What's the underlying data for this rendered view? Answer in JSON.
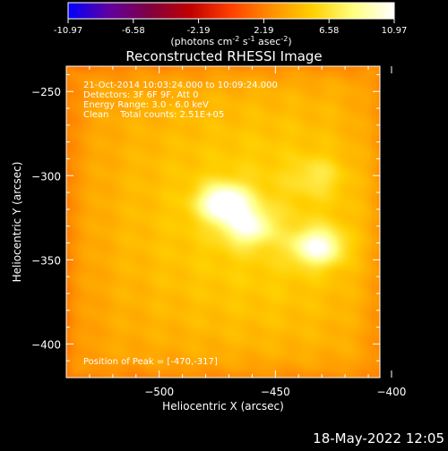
{
  "chart_data": {
    "type": "heatmap",
    "title": "Reconstructed RHESSI Image",
    "xlabel": "Heliocentric X (arcsec)",
    "ylabel": "Heliocentric Y (arcsec)",
    "xlim": [
      -540,
      -405
    ],
    "ylim": [
      -420,
      -235
    ],
    "xticks": [
      -500,
      -450,
      -400
    ],
    "yticks": [
      -250,
      -300,
      -350,
      -400
    ],
    "colorbar": {
      "min": -10.97,
      "max": 10.97,
      "ticks": [
        "-10.97",
        "-6.58",
        "-2.19",
        "2.19",
        "6.58",
        "10.97"
      ],
      "unit_label": "(photons cm",
      "unit_sup1": "-2",
      "unit_mid1": " s",
      "unit_sup2": "-1",
      "unit_mid2": " asec",
      "unit_sup3": "-2",
      "unit_end": ")"
    },
    "annotations": [
      "21-Oct-2014 10:03:24.000 to 10:09:24.000",
      "Detectors: 3F 6F 9F, Att 0",
      "Energy Range: 3.0 - 6.0 keV",
      "Clean    Total counts: 2.51E+05"
    ],
    "peak_label": "Position of Peak = [-470,-317]",
    "peak": [
      -470,
      -317
    ],
    "sources": [
      {
        "x": -472,
        "y": -316,
        "value": 10.9
      },
      {
        "x": -462,
        "y": -330,
        "value": 8.6
      },
      {
        "x": -432,
        "y": -342,
        "value": 9.4
      },
      {
        "x": -432,
        "y": -300,
        "value": 5.4
      }
    ],
    "background_level": 3.6,
    "colormap": [
      "#0000ff",
      "#6000a0",
      "#800040",
      "#c00000",
      "#ff4000",
      "#ff9000",
      "#ffd000",
      "#ffff80",
      "#ffffff"
    ]
  },
  "footer": {
    "timestamp": "18-May-2022 12:05"
  }
}
